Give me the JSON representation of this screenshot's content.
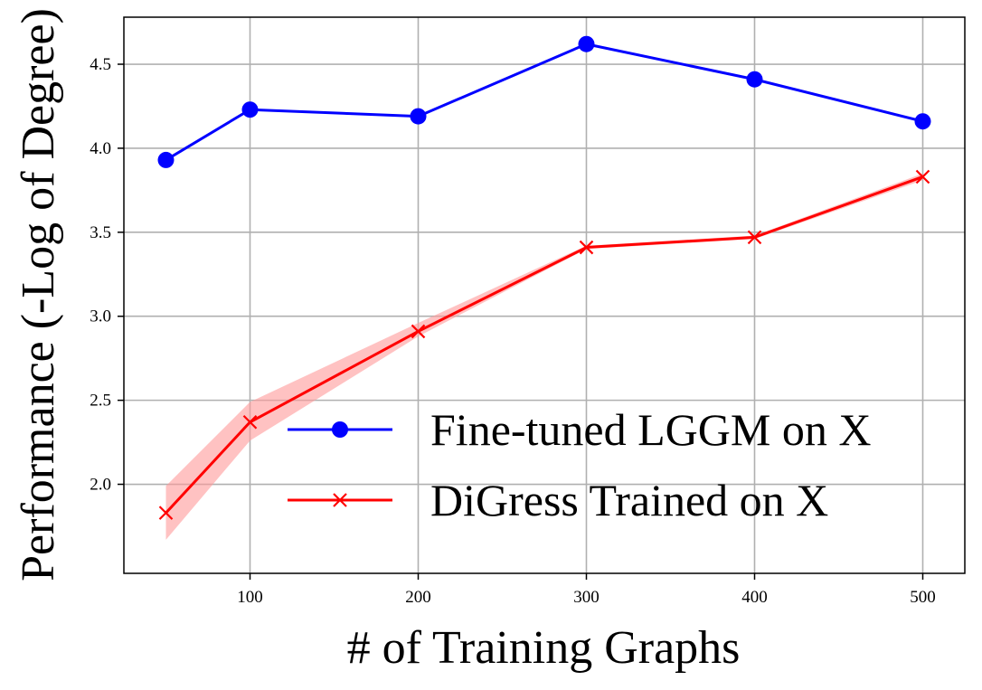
{
  "chart_data": {
    "type": "line",
    "xlabel": "# of Training Graphs",
    "ylabel": "Performance (-Log of Degree)",
    "x": [
      50,
      100,
      200,
      300,
      400,
      500
    ],
    "xlim": [
      25,
      525
    ],
    "ylim": [
      1.47,
      4.78
    ],
    "xticks": [
      100,
      200,
      300,
      400,
      500
    ],
    "xtick_labels": [
      "100",
      "200",
      "300",
      "400",
      "500"
    ],
    "yticks": [
      2.0,
      2.5,
      3.0,
      3.5,
      4.0,
      4.5
    ],
    "ytick_labels": [
      "2.0",
      "2.5",
      "3.0",
      "3.5",
      "4.0",
      "4.5"
    ],
    "grid": true,
    "legend_position": "lower-right",
    "series": [
      {
        "name": "Fine-tuned LGGM on X",
        "color": "#0000ff",
        "marker": "circle",
        "values": [
          3.93,
          4.23,
          4.19,
          4.62,
          4.41,
          4.16
        ],
        "band_low": [
          3.93,
          4.23,
          4.19,
          4.62,
          4.41,
          4.16
        ],
        "band_high": [
          3.93,
          4.23,
          4.19,
          4.62,
          4.41,
          4.16
        ]
      },
      {
        "name": "DiGress Trained on X",
        "color": "#ff0000",
        "band_color": "#ff9999",
        "marker": "x",
        "values": [
          1.83,
          2.37,
          2.91,
          3.41,
          3.47,
          3.83
        ],
        "band_low": [
          1.67,
          2.26,
          2.88,
          3.4,
          3.46,
          3.81
        ],
        "band_high": [
          1.99,
          2.49,
          2.96,
          3.42,
          3.48,
          3.85
        ]
      }
    ]
  }
}
